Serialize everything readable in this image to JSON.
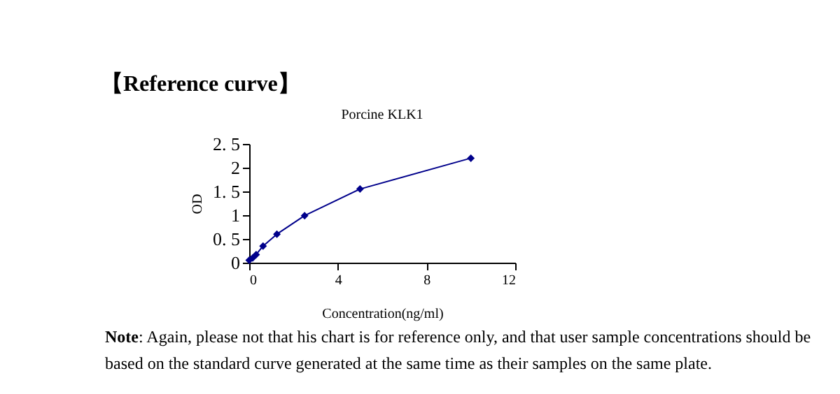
{
  "chart_data": {
    "type": "line",
    "title": "【Reference curve】",
    "subtitle": "Porcine KLK1",
    "xlabel": "Concentration(ng/ml)",
    "ylabel": "OD",
    "x": [
      0,
      0.156,
      0.313,
      0.625,
      1.25,
      2.5,
      5,
      10
    ],
    "series": [
      {
        "color": "#00008b",
        "values": [
          0.05,
          0.1,
          0.17,
          0.35,
          0.6,
          0.99,
          1.55,
          2.2
        ]
      }
    ],
    "xlim": [
      0,
      12
    ],
    "xticks": [
      0,
      4,
      8,
      12
    ],
    "ylim": [
      0,
      2.5
    ],
    "yticks": [
      0,
      {
        "value": 0.5,
        "label": "0. 5"
      },
      1,
      {
        "value": 1.5,
        "label": "1. 5"
      },
      2,
      {
        "value": 2.5,
        "label": "2. 5"
      }
    ],
    "grid": false,
    "marker": "diamond",
    "line_style": "solid",
    "annotations": [
      "Note: Again, please not that his chart is for reference only, and that user sample concentrations should be based on the standard curve generated at the same time as their samples on the same plate."
    ]
  }
}
